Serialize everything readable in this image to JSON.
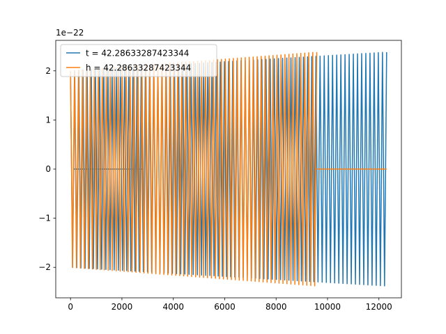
{
  "chart_data": {
    "type": "line",
    "title": "",
    "xlabel": "",
    "ylabel": "",
    "offset_text": "1e−22",
    "xlim": [
      -575,
      12875
    ],
    "ylim": [
      -2.62,
      2.62
    ],
    "xticks": [
      0,
      2000,
      4000,
      6000,
      8000,
      10000,
      12000
    ],
    "xtick_labels": [
      "0",
      "2000",
      "4000",
      "6000",
      "8000",
      "10000",
      "12000"
    ],
    "yticks": [
      -2,
      -1,
      0,
      1,
      2
    ],
    "ytick_labels": [
      "−2",
      "−1",
      "0",
      "1",
      "2"
    ],
    "grid": false,
    "legend_position": "upper-left",
    "series": [
      {
        "name": "t = 42.28633287423344",
        "color": "#1f77b4",
        "x_start": 0,
        "x_end": 12300,
        "cycles": 76,
        "amp_start": 2.0,
        "amp_end": 2.38,
        "zero_segment": [
          100,
          2780
        ]
      },
      {
        "name": "h = 42.28633287423344",
        "color": "#ff7f0e",
        "x_start": 0,
        "x_end": 9580,
        "cycles": 62,
        "amp_start": 2.0,
        "amp_end": 2.38,
        "zero_segment": [
          9580,
          12300
        ]
      }
    ]
  }
}
